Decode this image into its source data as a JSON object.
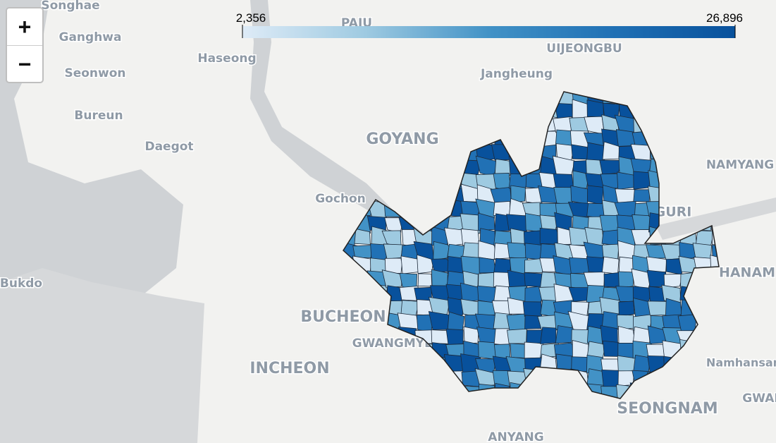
{
  "zoom_controls": {
    "zoom_in": "+",
    "zoom_out": "−"
  },
  "legend": {
    "colors": [
      "#deebf7",
      "#9ecae1",
      "#4292c6",
      "#2171b5",
      "#08519c"
    ],
    "ticks": [
      {
        "value": 2356,
        "label": "2,356"
      },
      {
        "value": 26896,
        "label": "26,896"
      }
    ]
  },
  "places": [
    "Songhae",
    "Ganghwa",
    "Haseong",
    "Seonwon",
    "Bureun",
    "Daegot",
    "PAJU",
    "UIJEONGBU",
    "Jangheung",
    "GOYANG",
    "Gochon",
    "NAMYANG",
    "GURI",
    "HANAM",
    "Bukdo",
    "BUCHEON",
    "GWANGMYEONG",
    "INCHEON",
    "Namhansan",
    "SEONGNAM",
    "ANYANG",
    "GWANGJU"
  ]
}
